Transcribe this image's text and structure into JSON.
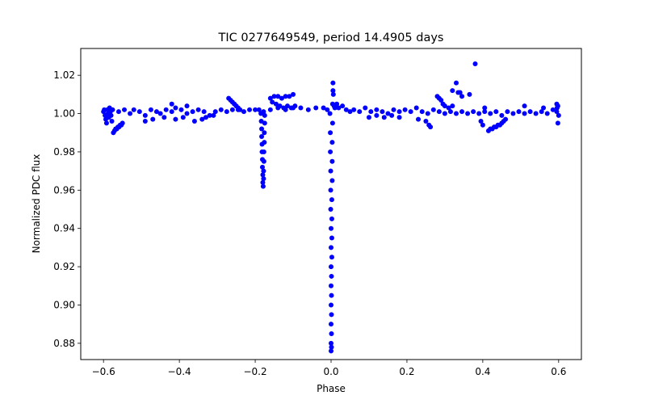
{
  "chart_data": {
    "type": "scatter",
    "title": "TIC 0277649549, period 14.4905 days",
    "xlabel": "Phase",
    "ylabel": "Normalized PDC flux",
    "xlim": [
      -0.66,
      0.66
    ],
    "ylim": [
      0.8715,
      1.034
    ],
    "xticks": [
      -0.6,
      -0.4,
      -0.2,
      0.0,
      0.2,
      0.4,
      0.6
    ],
    "xtick_labels": [
      "−0.6",
      "−0.4",
      "−0.2",
      "0.0",
      "0.2",
      "0.4",
      "0.6"
    ],
    "yticks": [
      0.88,
      0.9,
      0.92,
      0.94,
      0.96,
      0.98,
      1.0,
      1.02
    ],
    "ytick_labels": [
      "0.88",
      "0.90",
      "0.92",
      "0.94",
      "0.96",
      "0.98",
      "1.00",
      "1.02"
    ],
    "grid": false,
    "series": [
      {
        "name": "PDC flux",
        "color": "#0000ff",
        "points": [
          [
            -0.6,
            1.001
          ],
          [
            -0.598,
            1.002
          ],
          [
            -0.596,
            0.999
          ],
          [
            -0.594,
            0.997
          ],
          [
            -0.592,
            0.995
          ],
          [
            -0.59,
            1.002
          ],
          [
            -0.588,
            1.0
          ],
          [
            -0.586,
            0.998
          ],
          [
            -0.584,
            1.003
          ],
          [
            -0.582,
            1.001
          ],
          [
            -0.58,
            0.999
          ],
          [
            -0.578,
            0.996
          ],
          [
            -0.576,
            1.002
          ],
          [
            -0.574,
            0.99
          ],
          [
            -0.571,
            0.991
          ],
          [
            -0.568,
            0.992
          ],
          [
            -0.565,
            0.992
          ],
          [
            -0.562,
            0.993
          ],
          [
            -0.559,
            0.993
          ],
          [
            -0.556,
            0.994
          ],
          [
            -0.553,
            0.994
          ],
          [
            -0.55,
            0.995
          ],
          [
            -0.56,
            1.001
          ],
          [
            -0.545,
            1.002
          ],
          [
            -0.53,
            1.0
          ],
          [
            -0.52,
            1.002
          ],
          [
            -0.505,
            1.001
          ],
          [
            -0.49,
            0.999
          ],
          [
            -0.475,
            1.002
          ],
          [
            -0.46,
            1.001
          ],
          [
            -0.45,
            1.0
          ],
          [
            -0.435,
            1.002
          ],
          [
            -0.42,
            1.001
          ],
          [
            -0.41,
            1.003
          ],
          [
            -0.395,
            1.002
          ],
          [
            -0.38,
            1.0
          ],
          [
            -0.365,
            1.001
          ],
          [
            -0.35,
            1.002
          ],
          [
            -0.335,
            1.001
          ],
          [
            -0.32,
            0.999
          ],
          [
            -0.305,
            1.001
          ],
          [
            -0.29,
            1.002
          ],
          [
            -0.275,
            1.001
          ],
          [
            -0.26,
            1.002
          ],
          [
            -0.245,
            1.002
          ],
          [
            -0.23,
            1.001
          ],
          [
            -0.215,
            1.002
          ],
          [
            -0.2,
            1.002
          ],
          [
            -0.19,
            1.002
          ],
          [
            -0.178,
            1.001
          ],
          [
            -0.16,
            1.002
          ],
          [
            -0.14,
            1.003
          ],
          [
            -0.12,
            1.002
          ],
          [
            -0.1,
            1.003
          ],
          [
            -0.08,
            1.003
          ],
          [
            -0.06,
            1.002
          ],
          [
            -0.04,
            1.003
          ],
          [
            -0.02,
            1.003
          ],
          [
            -0.01,
            1.002
          ],
          [
            -0.49,
            0.996
          ],
          [
            -0.47,
            0.997
          ],
          [
            -0.44,
            0.998
          ],
          [
            -0.41,
            0.997
          ],
          [
            -0.39,
            0.998
          ],
          [
            -0.36,
            0.996
          ],
          [
            -0.34,
            0.997
          ],
          [
            -0.33,
            0.998
          ],
          [
            -0.31,
            0.999
          ],
          [
            -0.27,
            1.008
          ],
          [
            -0.265,
            1.007
          ],
          [
            -0.26,
            1.006
          ],
          [
            -0.255,
            1.005
          ],
          [
            -0.25,
            1.004
          ],
          [
            -0.245,
            1.003
          ],
          [
            -0.24,
            1.002
          ],
          [
            -0.16,
            1.008
          ],
          [
            -0.15,
            1.009
          ],
          [
            -0.14,
            1.009
          ],
          [
            -0.13,
            1.008
          ],
          [
            -0.12,
            1.009
          ],
          [
            -0.11,
            1.009
          ],
          [
            -0.1,
            1.01
          ],
          [
            -0.155,
            1.006
          ],
          [
            -0.145,
            1.005
          ],
          [
            -0.135,
            1.004
          ],
          [
            -0.125,
            1.003
          ],
          [
            -0.115,
            1.004
          ],
          [
            -0.105,
            1.003
          ],
          [
            -0.095,
            1.004
          ],
          [
            -0.185,
            1.0
          ],
          [
            -0.184,
            0.996
          ],
          [
            -0.183,
            0.992
          ],
          [
            -0.183,
            0.988
          ],
          [
            -0.182,
            0.984
          ],
          [
            -0.182,
            0.98
          ],
          [
            -0.181,
            0.976
          ],
          [
            -0.181,
            0.972
          ],
          [
            -0.18,
            0.968
          ],
          [
            -0.18,
            0.964
          ],
          [
            -0.179,
            0.962
          ],
          [
            -0.178,
            0.966
          ],
          [
            -0.178,
            0.97
          ],
          [
            -0.177,
            0.975
          ],
          [
            -0.177,
            0.98
          ],
          [
            -0.176,
            0.985
          ],
          [
            -0.176,
            0.99
          ],
          [
            -0.175,
            0.995
          ],
          [
            -0.175,
            0.999
          ],
          [
            -0.003,
            1.0
          ],
          [
            -0.002,
            0.99
          ],
          [
            -0.002,
            0.98
          ],
          [
            -0.001,
            0.97
          ],
          [
            -0.001,
            0.96
          ],
          [
            -0.001,
            0.95
          ],
          [
            0.0,
            0.94
          ],
          [
            0.0,
            0.93
          ],
          [
            0.0,
            0.92
          ],
          [
            0.0,
            0.91
          ],
          [
            0.0,
            0.9
          ],
          [
            0.0,
            0.89
          ],
          [
            0.0,
            0.88
          ],
          [
            0.0,
            0.876
          ],
          [
            0.001,
            0.878
          ],
          [
            0.001,
            0.885
          ],
          [
            0.001,
            0.895
          ],
          [
            0.001,
            0.905
          ],
          [
            0.001,
            0.915
          ],
          [
            0.002,
            0.925
          ],
          [
            0.002,
            0.935
          ],
          [
            0.002,
            0.945
          ],
          [
            0.002,
            0.955
          ],
          [
            0.003,
            0.965
          ],
          [
            0.003,
            0.975
          ],
          [
            0.003,
            0.985
          ],
          [
            0.004,
            0.995
          ],
          [
            0.004,
            1.005
          ],
          [
            0.005,
            1.012
          ],
          [
            0.005,
            1.016
          ],
          [
            0.006,
            1.01
          ],
          [
            0.008,
            1.004
          ],
          [
            0.01,
            1.003
          ],
          [
            0.015,
            1.005
          ],
          [
            0.02,
            1.003
          ],
          [
            0.03,
            1.004
          ],
          [
            0.04,
            1.002
          ],
          [
            0.05,
            1.001
          ],
          [
            0.06,
            1.002
          ],
          [
            0.075,
            1.001
          ],
          [
            0.09,
            1.003
          ],
          [
            0.105,
            1.001
          ],
          [
            0.12,
            1.002
          ],
          [
            0.135,
            1.001
          ],
          [
            0.15,
            1.0
          ],
          [
            0.165,
            1.002
          ],
          [
            0.18,
            1.001
          ],
          [
            0.195,
            1.002
          ],
          [
            0.21,
            1.001
          ],
          [
            0.225,
            1.003
          ],
          [
            0.24,
            1.001
          ],
          [
            0.255,
            1.0
          ],
          [
            0.27,
            1.002
          ],
          [
            0.285,
            1.001
          ],
          [
            0.3,
            1.0
          ],
          [
            0.315,
            1.001
          ],
          [
            0.33,
            1.0
          ],
          [
            0.345,
            1.001
          ],
          [
            0.36,
            1.0
          ],
          [
            0.375,
            1.001
          ],
          [
            0.39,
            1.0
          ],
          [
            0.405,
            1.001
          ],
          [
            0.42,
            1.0
          ],
          [
            0.435,
            1.001
          ],
          [
            0.45,
            0.999
          ],
          [
            0.465,
            1.001
          ],
          [
            0.48,
            1.0
          ],
          [
            0.495,
            1.001
          ],
          [
            0.51,
            1.0
          ],
          [
            0.525,
            1.001
          ],
          [
            0.54,
            1.0
          ],
          [
            0.555,
            1.001
          ],
          [
            0.57,
            1.0
          ],
          [
            0.585,
            1.002
          ],
          [
            0.595,
            1.001
          ],
          [
            0.598,
            0.995
          ],
          [
            0.6,
            0.999
          ],
          [
            0.598,
            1.004
          ],
          [
            0.596,
            1.003
          ],
          [
            0.1,
            0.998
          ],
          [
            0.12,
            0.999
          ],
          [
            0.14,
            0.998
          ],
          [
            0.16,
            0.999
          ],
          [
            0.18,
            0.998
          ],
          [
            0.23,
            0.997
          ],
          [
            0.25,
            0.996
          ],
          [
            0.258,
            0.994
          ],
          [
            0.262,
            0.993
          ],
          [
            0.28,
            1.009
          ],
          [
            0.285,
            1.008
          ],
          [
            0.29,
            1.007
          ],
          [
            0.295,
            1.005
          ],
          [
            0.3,
            1.004
          ],
          [
            0.31,
            1.003
          ],
          [
            0.32,
            1.004
          ],
          [
            0.415,
            0.991
          ],
          [
            0.42,
            0.992
          ],
          [
            0.425,
            0.992
          ],
          [
            0.43,
            0.993
          ],
          [
            0.435,
            0.993
          ],
          [
            0.44,
            0.994
          ],
          [
            0.445,
            0.994
          ],
          [
            0.45,
            0.995
          ],
          [
            0.455,
            0.996
          ],
          [
            0.46,
            0.997
          ],
          [
            0.395,
            0.996
          ],
          [
            0.4,
            0.994
          ],
          [
            0.405,
            1.003
          ],
          [
            0.32,
            1.012
          ],
          [
            0.33,
            1.016
          ],
          [
            0.335,
            1.011
          ],
          [
            0.34,
            1.011
          ],
          [
            0.345,
            1.009
          ],
          [
            0.365,
            1.01
          ],
          [
            0.38,
            1.026
          ],
          [
            -0.42,
            1.005
          ],
          [
            -0.38,
            1.004
          ],
          [
            0.51,
            1.004
          ],
          [
            0.56,
            1.003
          ],
          [
            0.595,
            1.005
          ]
        ]
      }
    ]
  }
}
